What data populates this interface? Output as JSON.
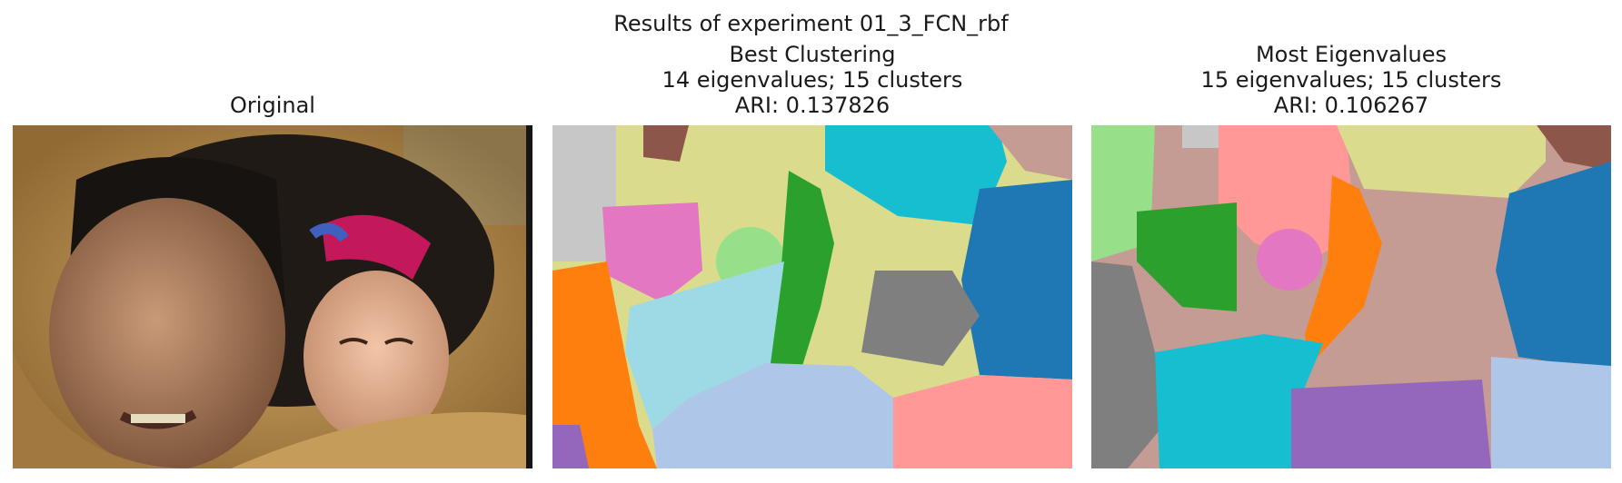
{
  "figure": {
    "suptitle": "Results of experiment 01_3_FCN_rbf",
    "panels": [
      {
        "title_lines": [
          "Original"
        ]
      },
      {
        "title_lines": [
          "Best Clustering",
          "14 eigenvalues; 15 clusters",
          "ARI: 0.137826"
        ]
      },
      {
        "title_lines": [
          "Most Eigenvalues",
          "15 eigenvalues; 15 clusters",
          "ARI: 0.106267"
        ]
      }
    ]
  },
  "colors": {
    "tab_blue": "#1f77b4",
    "tab_orange": "#ff7f0e",
    "tab_green": "#2ca02c",
    "tab_purple": "#9467bd",
    "tab_brown": "#8c564b",
    "tab_pink": "#e377c2",
    "tab_gray": "#7f7f7f",
    "tab_olive": "#dbdb8d",
    "tab_cyan": "#17becf",
    "light_blue": "#aec7e8",
    "light_cyan": "#9edae5",
    "light_green": "#98df8a",
    "salmon": "#ff9896",
    "rose_brown": "#c49c94",
    "light_gray": "#c7c7c7"
  }
}
